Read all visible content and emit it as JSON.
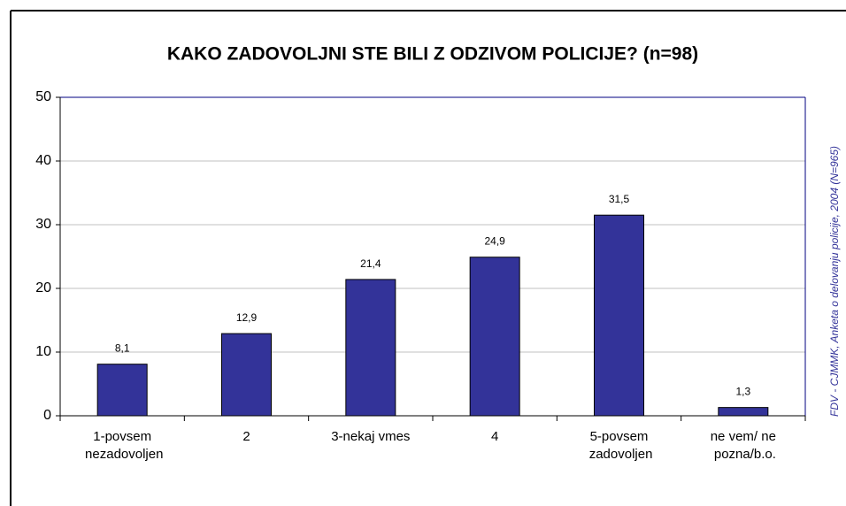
{
  "chart_data": {
    "type": "bar",
    "title": "KAKO ZADOVOLJNI STE BILI Z ODZIVOM POLICIJE? (n=98)",
    "categories": [
      "1-povsem nezadovoljen",
      "2",
      "3-nekaj vmes",
      "4",
      "5-povsem zadovoljen",
      "ne vem/ ne pozna/b.o."
    ],
    "values": [
      8.1,
      12.9,
      21.4,
      24.9,
      31.5,
      1.3
    ],
    "value_labels": [
      "8,1",
      "12,9",
      "21,4",
      "24,9",
      "31,5",
      "1,3"
    ],
    "color": "#333399",
    "ylim": [
      0,
      50
    ],
    "yticks": [
      0,
      10,
      20,
      30,
      40,
      50
    ],
    "grid": true,
    "source": "FDV - CJMMK, Anketa o delovanju policije, 2004 (N=965)"
  }
}
